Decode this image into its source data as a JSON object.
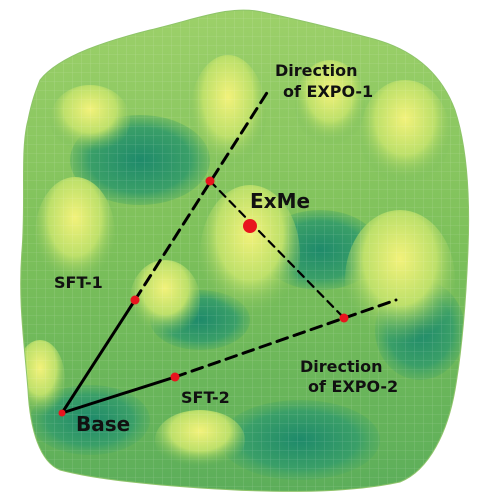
{
  "labels": {
    "direction_expo1_line1": "Direction",
    "direction_expo1_line2": "of EXPO-1",
    "exme": "ExMe",
    "sft1": "SFT-1",
    "direction_expo2_line1": "Direction",
    "direction_expo2_line2": "of EXPO-2",
    "sft2": "SFT-2",
    "base": "Base"
  },
  "colors": {
    "surface_dark": "#1f8c6b",
    "surface_mid": "#6cbf5a",
    "surface_light": "#d9ec6a",
    "point": "#e8141e",
    "line": "#000000"
  }
}
